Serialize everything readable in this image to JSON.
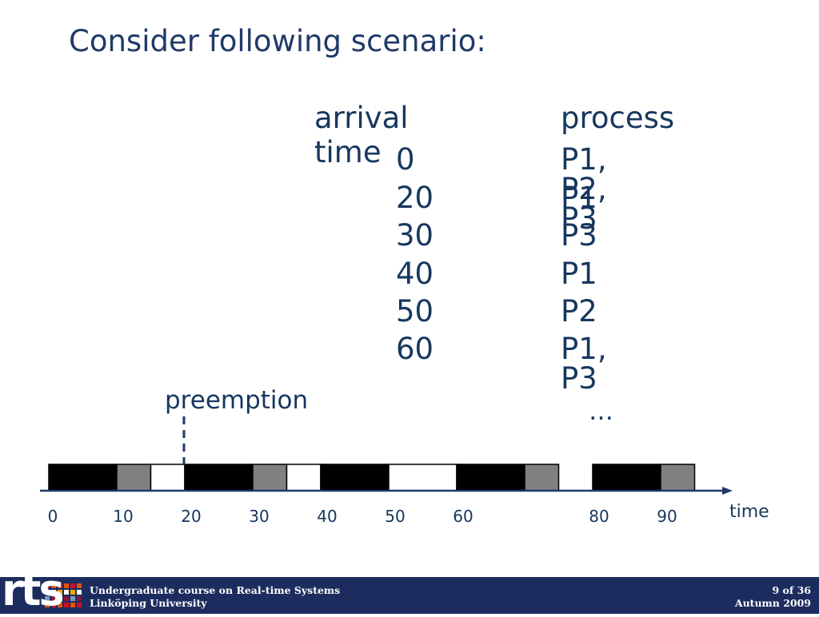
{
  "slide": {
    "title": "Consider following scenario:"
  },
  "table": {
    "headers": [
      "arrival time",
      "process"
    ],
    "rows": [
      {
        "arrival": "0",
        "process": "P1, P2, P3"
      },
      {
        "arrival": "20",
        "process": "P1"
      },
      {
        "arrival": "30",
        "process": "P3"
      },
      {
        "arrival": "40",
        "process": "P1"
      },
      {
        "arrival": "50",
        "process": "P2"
      },
      {
        "arrival": "60",
        "process": "P1, P3"
      }
    ]
  },
  "annotations": {
    "preemption": "preemption",
    "ellipsis": "…",
    "axis_label": "time"
  },
  "chart_data": {
    "type": "bar",
    "title": "",
    "xlabel": "time",
    "ylabel": "",
    "xlim": [
      0,
      100
    ],
    "tick_labels": [
      "0",
      "10",
      "20",
      "30",
      "40",
      "50",
      "60",
      "80",
      "90"
    ],
    "ticks": [
      0,
      10,
      20,
      30,
      40,
      50,
      60,
      80,
      90
    ],
    "preemption_at": 20,
    "segments": [
      {
        "start": 0,
        "end": 10,
        "fill": "#000000"
      },
      {
        "start": 10,
        "end": 15,
        "fill": "#808080"
      },
      {
        "start": 15,
        "end": 20,
        "fill": "#ffffff"
      },
      {
        "start": 20,
        "end": 30,
        "fill": "#000000"
      },
      {
        "start": 30,
        "end": 35,
        "fill": "#808080"
      },
      {
        "start": 35,
        "end": 40,
        "fill": "#ffffff"
      },
      {
        "start": 40,
        "end": 50,
        "fill": "#000000"
      },
      {
        "start": 50,
        "end": 60,
        "fill": "#ffffff"
      },
      {
        "start": 60,
        "end": 70,
        "fill": "#000000"
      },
      {
        "start": 70,
        "end": 75,
        "fill": "#808080"
      },
      {
        "start": 80,
        "end": 90,
        "fill": "#000000"
      },
      {
        "start": 90,
        "end": 95,
        "fill": "#808080"
      }
    ]
  },
  "footer": {
    "course": "Undergraduate course on Real-time  Systems",
    "university": "Linköping University",
    "page": "9 of 36",
    "term": "Autumn  2009"
  },
  "logo": {
    "text": "rts"
  },
  "colors": {
    "title": "#1f3a68",
    "text": "#17375e",
    "footer_bg": "#1c2c5e",
    "axis": "#1f3a68"
  }
}
